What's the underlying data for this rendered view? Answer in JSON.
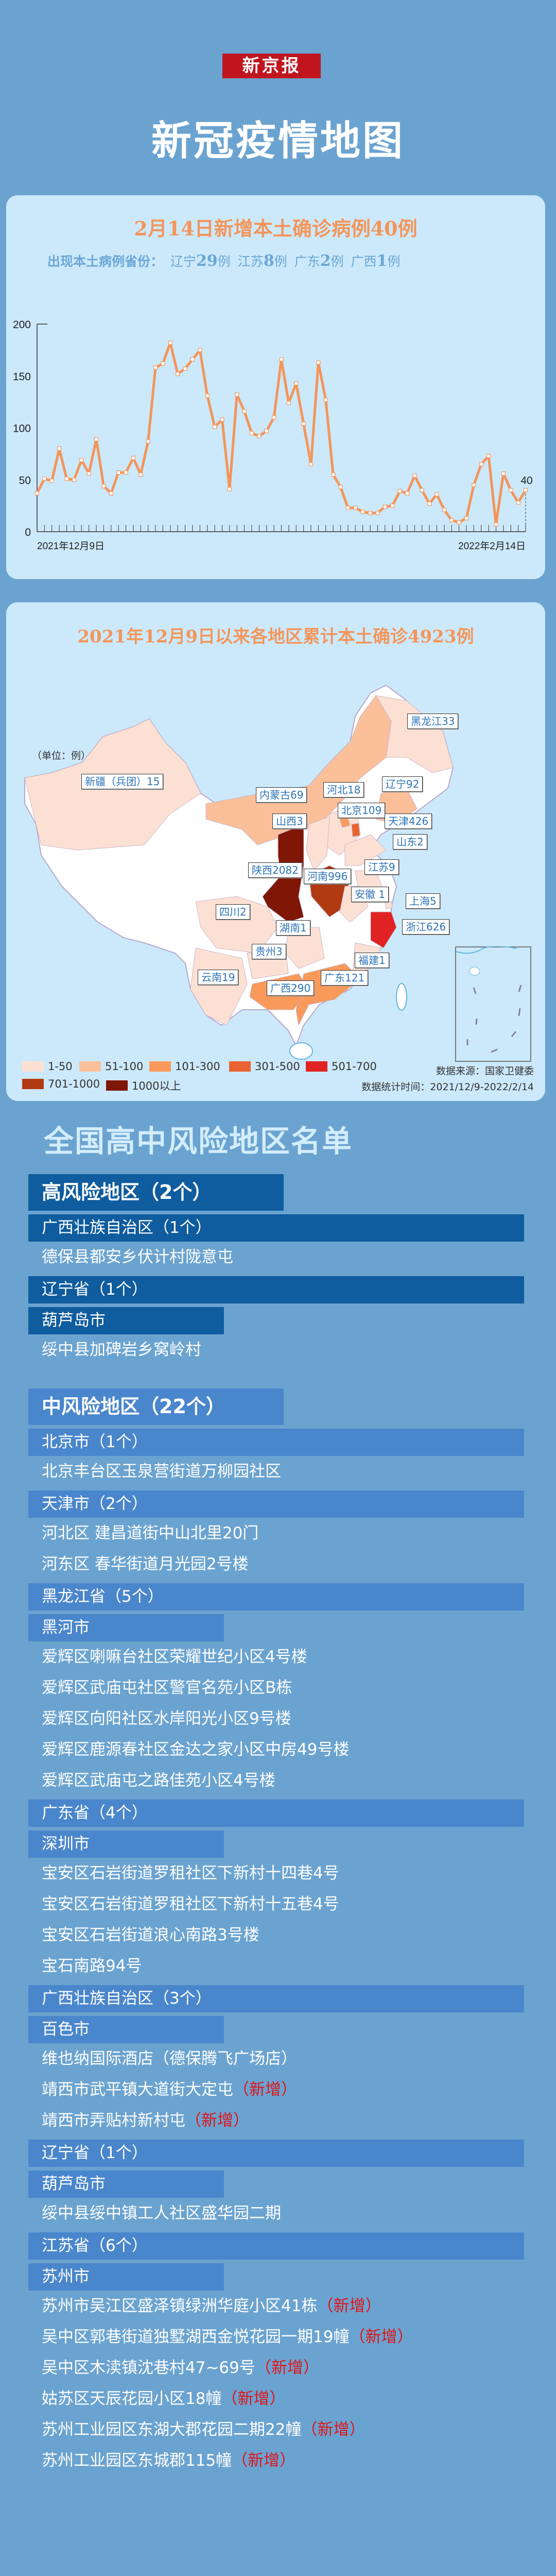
{
  "header": {
    "logo_text": "新京报",
    "title": "新冠疫情地图"
  },
  "chart_data": {
    "type": "line",
    "title": "2月14日新增本土确诊病例40例",
    "subtitle_label": "出现本土病例省份：",
    "subtitle_provinces": [
      {
        "name": "辽宁",
        "count": "29",
        "unit": "例"
      },
      {
        "name": "江苏",
        "count": "8",
        "unit": "例"
      },
      {
        "name": "广东",
        "count": "2",
        "unit": "例"
      },
      {
        "name": "广西",
        "count": "1",
        "unit": "例"
      }
    ],
    "x_start_label": "2021年12月9日",
    "x_end_label": "2022年2月14日",
    "ylim": [
      0,
      200
    ],
    "yticks": [
      "0",
      "50",
      "100",
      "150",
      "200"
    ],
    "values": [
      37,
      51,
      49,
      80,
      51,
      50,
      69,
      56,
      89,
      44,
      37,
      57,
      57,
      71,
      55,
      87,
      158,
      162,
      182,
      152,
      157,
      166,
      175,
      131,
      101,
      108,
      41,
      132,
      116,
      95,
      92,
      97,
      110,
      166,
      124,
      143,
      104,
      65,
      163,
      127,
      55,
      43,
      23,
      23,
      19,
      18,
      18,
      24,
      25,
      39,
      37,
      54,
      40,
      27,
      36,
      21,
      11,
      9,
      13,
      45,
      65,
      73,
      7,
      56,
      40,
      28,
      40
    ],
    "last_label": "40",
    "line_color": "#f4955a",
    "grid": false
  },
  "map": {
    "title": "2021年12月9日以来各地区累计本土确诊4923例",
    "unit_label": "（单位：例）",
    "regions": [
      {
        "label": "新疆（兵团）15",
        "bin": 0
      },
      {
        "label": "黑龙江33",
        "bin": 0
      },
      {
        "label": "辽宁92",
        "bin": 1
      },
      {
        "label": "河北18",
        "bin": 0
      },
      {
        "label": "内蒙古69",
        "bin": 1
      },
      {
        "label": "北京109",
        "bin": 2
      },
      {
        "label": "天津426",
        "bin": 3
      },
      {
        "label": "山西3",
        "bin": 0
      },
      {
        "label": "山东2",
        "bin": 0
      },
      {
        "label": "江苏9",
        "bin": 0
      },
      {
        "label": "陕西2082",
        "bin": 6
      },
      {
        "label": "河南996",
        "bin": 5
      },
      {
        "label": "安徽 1",
        "bin": 0
      },
      {
        "label": "上海5",
        "bin": 0
      },
      {
        "label": "四川2",
        "bin": 0
      },
      {
        "label": "湖南1",
        "bin": 0
      },
      {
        "label": "浙江626",
        "bin": 4
      },
      {
        "label": "贵州3",
        "bin": 0
      },
      {
        "label": "福建1",
        "bin": 0
      },
      {
        "label": "云南19",
        "bin": 0
      },
      {
        "label": "广东121",
        "bin": 2
      },
      {
        "label": "广西290",
        "bin": 2
      }
    ],
    "legend": [
      {
        "label": "1-50",
        "color": "#fde0d4"
      },
      {
        "label": "51-100",
        "color": "#fbbf9a"
      },
      {
        "label": "101-300",
        "color": "#f99a5b"
      },
      {
        "label": "301-500",
        "color": "#ea6230"
      },
      {
        "label": "501-700",
        "color": "#e02222"
      },
      {
        "label": "701-1000",
        "color": "#b13a12"
      },
      {
        "label": "1000以上",
        "color": "#7f1606"
      }
    ],
    "source": "数据来源：国家卫健委",
    "period": "数据统计时间：2021/12/9-2022/2/14"
  },
  "risk_list": {
    "title": "全国高中风险地区名单",
    "high": {
      "header": "高风险地区（2个）",
      "groups": [
        {
          "province": "广西壮族自治区（1个）",
          "city": "",
          "items": [
            {
              "text": "德保县都安乡伏计村陇意屯",
              "tag": ""
            }
          ]
        },
        {
          "province": "辽宁省（1个）",
          "city": "葫芦岛市",
          "items": [
            {
              "text": "绥中县加碑岩乡窝岭村",
              "tag": ""
            }
          ]
        }
      ]
    },
    "medium": {
      "header": "中风险地区（22个）",
      "groups": [
        {
          "province": "北京市（1个）",
          "city": "",
          "items": [
            {
              "text": "北京丰台区玉泉营街道万柳园社区",
              "tag": ""
            }
          ]
        },
        {
          "province": "天津市（2个）",
          "city": "",
          "items": [
            {
              "text": "河北区 建昌道街中山北里20门",
              "tag": ""
            },
            {
              "text": "河东区 春华街道月光园2号楼",
              "tag": ""
            }
          ]
        },
        {
          "province": "黑龙江省（5个）",
          "city": "黑河市",
          "items": [
            {
              "text": "爱辉区喇嘛台社区荣耀世纪小区4号楼",
              "tag": ""
            },
            {
              "text": "爱辉区武庙屯社区警官名苑小区B栋",
              "tag": ""
            },
            {
              "text": "爱辉区向阳社区水岸阳光小区9号楼",
              "tag": ""
            },
            {
              "text": "爱辉区鹿源春社区金达之家小区中房49号楼",
              "tag": ""
            },
            {
              "text": "爱辉区武庙屯之路佳苑小区4号楼",
              "tag": ""
            }
          ]
        },
        {
          "province": "广东省（4个）",
          "city": "深圳市",
          "items": [
            {
              "text": "宝安区石岩街道罗租社区下新村十四巷4号",
              "tag": ""
            },
            {
              "text": "宝安区石岩街道罗租社区下新村十五巷4号",
              "tag": ""
            },
            {
              "text": "宝安区石岩街道浪心南路3号楼",
              "tag": ""
            },
            {
              "text": "宝石南路94号",
              "tag": ""
            }
          ]
        },
        {
          "province": "广西壮族自治区（3个）",
          "city": "百色市",
          "items": [
            {
              "text": "维也纳国际酒店（德保腾飞广场店）",
              "tag": ""
            },
            {
              "text": "靖西市武平镇大道街大定屯",
              "tag": "（新增）"
            },
            {
              "text": "靖西市弄贴村新村屯",
              "tag": "（新增）"
            }
          ]
        },
        {
          "province": "辽宁省（1个）",
          "city": "葫芦岛市",
          "items": [
            {
              "text": "绥中县绥中镇工人社区盛华园二期",
              "tag": ""
            }
          ]
        },
        {
          "province": "江苏省（6个）",
          "city": "苏州市",
          "items": [
            {
              "text": "苏州市吴江区盛泽镇绿洲华庭小区41栋",
              "tag": "（新增）"
            },
            {
              "text": "吴中区郭巷街道独墅湖西金悦花园一期19幢",
              "tag": "（新增）"
            },
            {
              "text": "吴中区木渎镇沈巷村47~69号",
              "tag": "（新增）"
            },
            {
              "text": "姑苏区天辰花园小区18幢",
              "tag": "（新增）"
            },
            {
              "text": "苏州工业园区东湖大郡花园二期22幢",
              "tag": "（新增）"
            },
            {
              "text": "苏州工业园区东城郡115幢",
              "tag": "（新增）"
            }
          ]
        }
      ]
    }
  }
}
